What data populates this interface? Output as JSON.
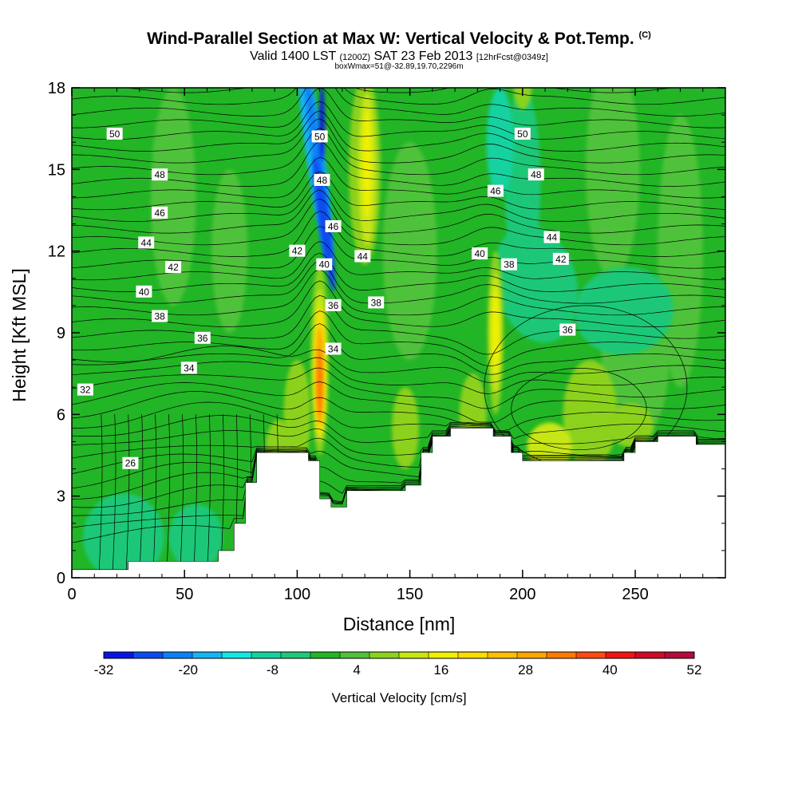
{
  "title_main": "Wind-Parallel Section at Max W: Vertical Velocity & Pot.Temp.",
  "title_copyright": "(C)",
  "subtitle_a": "Valid 1400 LST",
  "subtitle_b": "(1200Z)",
  "subtitle_c": "SAT 23 Feb 2013",
  "subtitle_d": "[12hrFcst@0349z]",
  "subtitle2": "boxWmax=51@-32.89,19.70,2296m",
  "colors": {
    "background": "#ffffff",
    "ground": "#ffffff",
    "base_green": "#22b526",
    "palette": [
      "#0a14e6",
      "#0a4cf0",
      "#0a82f5",
      "#14b4f5",
      "#14e6e6",
      "#14d2a0",
      "#1ec878",
      "#22b526",
      "#4fc23a",
      "#8cd21e",
      "#c8e614",
      "#f0f000",
      "#ffdc00",
      "#ffc000",
      "#ffa500",
      "#ff7a00",
      "#ff4a10",
      "#f01414",
      "#d00a28",
      "#b40a3c"
    ]
  },
  "chart_data": {
    "type": "heatmap",
    "xlabel": "Distance [nm]",
    "ylabel": "Height [Kft MSL]",
    "xlim": [
      0,
      290
    ],
    "ylim": [
      0,
      18
    ],
    "xticks": [
      0,
      50,
      100,
      150,
      200,
      250
    ],
    "yticks": [
      0,
      3,
      6,
      9,
      12,
      15,
      18
    ],
    "colorbar": {
      "label": "Vertical Velocity [cm/s]",
      "min": -32,
      "max": 52,
      "step": 4,
      "tick_values": [
        -32,
        -20,
        -8,
        4,
        16,
        28,
        40,
        52
      ]
    },
    "terrain": [
      [
        0,
        0.3
      ],
      [
        25,
        0.3
      ],
      [
        25,
        0.6
      ],
      [
        65,
        0.6
      ],
      [
        65,
        1
      ],
      [
        72,
        1
      ],
      [
        72,
        2
      ],
      [
        77,
        2
      ],
      [
        77,
        3.5
      ],
      [
        82,
        3.5
      ],
      [
        82,
        4.6
      ],
      [
        105,
        4.6
      ],
      [
        105,
        4.3
      ],
      [
        110,
        4.3
      ],
      [
        110,
        2.9
      ],
      [
        115,
        2.9
      ],
      [
        115,
        2.6
      ],
      [
        122,
        2.6
      ],
      [
        122,
        3.2
      ],
      [
        148,
        3.2
      ],
      [
        148,
        3.4
      ],
      [
        155,
        3.4
      ],
      [
        155,
        4.6
      ],
      [
        160,
        4.6
      ],
      [
        160,
        5.2
      ],
      [
        168,
        5.2
      ],
      [
        168,
        5.5
      ],
      [
        187,
        5.5
      ],
      [
        187,
        5.2
      ],
      [
        195,
        5.2
      ],
      [
        195,
        4.6
      ],
      [
        200,
        4.6
      ],
      [
        200,
        4.3
      ],
      [
        245,
        4.3
      ],
      [
        245,
        4.6
      ],
      [
        250,
        4.6
      ],
      [
        250,
        5.0
      ],
      [
        260,
        5.0
      ],
      [
        260,
        5.2
      ],
      [
        277,
        5.2
      ],
      [
        277,
        4.9
      ],
      [
        290,
        4.9
      ]
    ],
    "theta_label_points": [
      {
        "text": "50",
        "x": 19,
        "y": 16.3
      },
      {
        "text": "48",
        "x": 39,
        "y": 14.8
      },
      {
        "text": "46",
        "x": 39,
        "y": 13.4
      },
      {
        "text": "44",
        "x": 33,
        "y": 12.3
      },
      {
        "text": "42",
        "x": 45,
        "y": 11.4
      },
      {
        "text": "40",
        "x": 32,
        "y": 10.5
      },
      {
        "text": "38",
        "x": 39,
        "y": 9.6
      },
      {
        "text": "36",
        "x": 58,
        "y": 8.8
      },
      {
        "text": "34",
        "x": 52,
        "y": 7.7
      },
      {
        "text": "32",
        "x": 6,
        "y": 6.9
      },
      {
        "text": "26",
        "x": 26,
        "y": 4.2
      },
      {
        "text": "50",
        "x": 110,
        "y": 16.2
      },
      {
        "text": "48",
        "x": 111,
        "y": 14.6
      },
      {
        "text": "46",
        "x": 116,
        "y": 12.9
      },
      {
        "text": "42",
        "x": 100,
        "y": 12.0
      },
      {
        "text": "44",
        "x": 129,
        "y": 11.8
      },
      {
        "text": "40",
        "x": 112,
        "y": 11.5
      },
      {
        "text": "36",
        "x": 116,
        "y": 10.0
      },
      {
        "text": "38",
        "x": 135,
        "y": 10.1
      },
      {
        "text": "34",
        "x": 116,
        "y": 8.4
      },
      {
        "text": "50",
        "x": 200,
        "y": 16.3
      },
      {
        "text": "48",
        "x": 206,
        "y": 14.8
      },
      {
        "text": "46",
        "x": 188,
        "y": 14.2
      },
      {
        "text": "44",
        "x": 213,
        "y": 12.5
      },
      {
        "text": "40",
        "x": 181,
        "y": 11.9
      },
      {
        "text": "38",
        "x": 194,
        "y": 11.5
      },
      {
        "text": "42",
        "x": 217,
        "y": 11.7
      },
      {
        "text": "36",
        "x": 220,
        "y": 9.1
      }
    ]
  }
}
